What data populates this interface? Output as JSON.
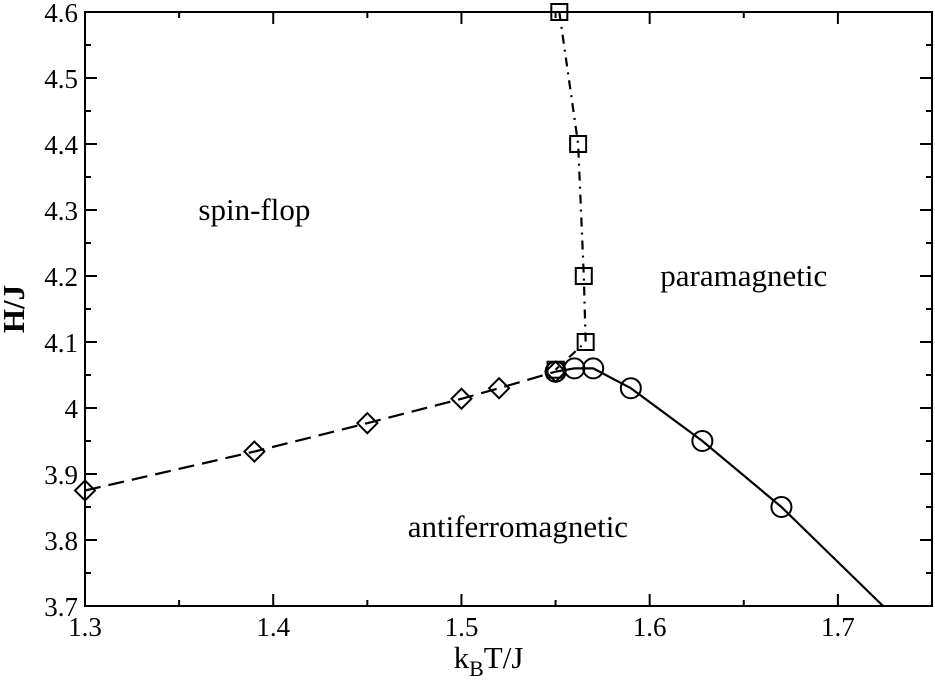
{
  "chart_data": {
    "type": "scatter",
    "title": "",
    "xlabel": "k_B T/J",
    "xlabel_main": "k",
    "xlabel_sub": "B",
    "xlabel_tail": "T/J",
    "ylabel": "H/J",
    "xlim": [
      1.3,
      1.75
    ],
    "ylim": [
      3.7,
      4.6
    ],
    "xticks": [
      1.3,
      1.4,
      1.5,
      1.6,
      1.7
    ],
    "xtick_labels": [
      "1.3",
      "1.4",
      "1.5",
      "1.6",
      "1.7"
    ],
    "yticks": [
      3.7,
      3.8,
      3.9,
      4.0,
      4.1,
      4.2,
      4.3,
      4.4,
      4.5,
      4.6
    ],
    "ytick_labels": [
      "3.7",
      "3.8",
      "3.9",
      "4",
      "4.1",
      "4.2",
      "4.3",
      "4.4",
      "4.5",
      "4.6"
    ],
    "grid": false,
    "series": [
      {
        "marker": "diamond",
        "line": "dashed",
        "color": "#000000",
        "points": [
          [
            1.3,
            3.875
          ],
          [
            1.39,
            3.934
          ],
          [
            1.45,
            3.977
          ],
          [
            1.5,
            4.014
          ],
          [
            1.52,
            4.03
          ],
          [
            1.55,
            4.055
          ]
        ]
      },
      {
        "marker": "square",
        "line": "dash-dot",
        "color": "#000000",
        "points": [
          [
            1.552,
            4.6
          ],
          [
            1.562,
            4.4
          ],
          [
            1.565,
            4.2
          ],
          [
            1.566,
            4.1
          ],
          [
            1.55,
            4.058
          ]
        ]
      },
      {
        "marker": "circle",
        "line": "solid",
        "color": "#000000",
        "points": [
          [
            1.55,
            4.055
          ],
          [
            1.56,
            4.06
          ],
          [
            1.57,
            4.06
          ],
          [
            1.59,
            4.03
          ],
          [
            1.628,
            3.95
          ],
          [
            1.67,
            3.85
          ]
        ],
        "line_extends_to": [
          1.724,
          3.7
        ]
      }
    ],
    "annotations": [
      {
        "text": "spin-flop",
        "x": 1.39,
        "y": 4.3
      },
      {
        "text": "paramagnetic",
        "x": 1.65,
        "y": 4.2
      },
      {
        "text": "antiferromagnetic",
        "x": 1.53,
        "y": 3.82
      }
    ]
  }
}
